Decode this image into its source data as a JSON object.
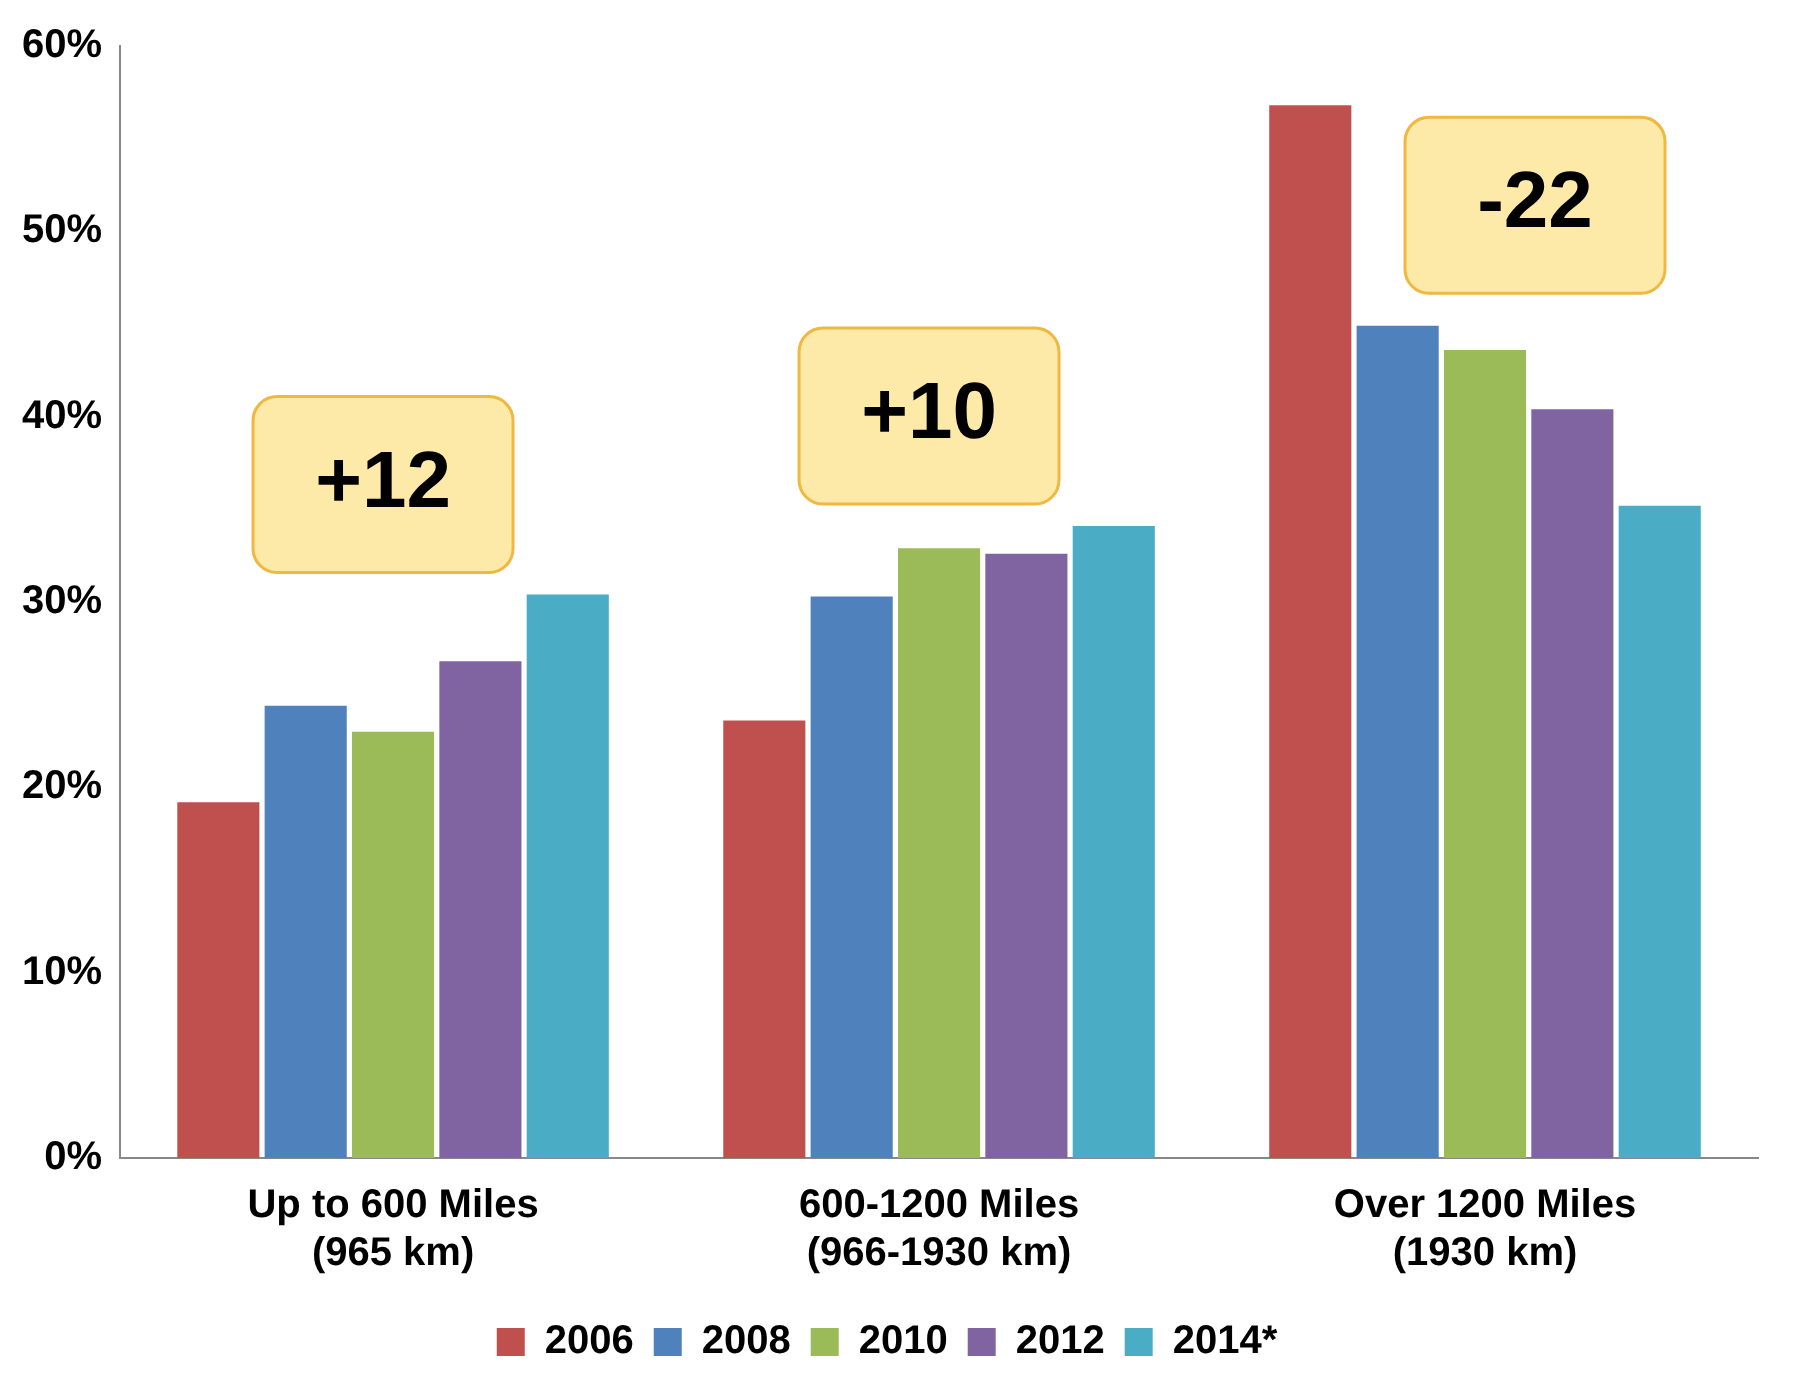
{
  "chart_data": {
    "type": "bar",
    "categories": [
      "Up to 600 Miles\n(965 km)",
      "600-1200 Miles\n(966-1930 km)",
      "Over 1200 Miles\n(1930 km)"
    ],
    "series": [
      {
        "name": "2006",
        "color": "#c0504d",
        "values": [
          19.2,
          23.6,
          56.8
        ]
      },
      {
        "name": "2008",
        "color": "#4f81bd",
        "values": [
          24.4,
          30.3,
          44.9
        ]
      },
      {
        "name": "2010",
        "color": "#9bbb59",
        "values": [
          23.0,
          32.9,
          43.6
        ]
      },
      {
        "name": "2012",
        "color": "#8064a2",
        "values": [
          26.8,
          32.6,
          40.4
        ]
      },
      {
        "name": "2014*",
        "color": "#4bacc6",
        "values": [
          30.4,
          34.1,
          35.2
        ]
      }
    ],
    "ylim": [
      0,
      60
    ],
    "yticks": [
      {
        "value": 0,
        "label": "0%"
      },
      {
        "value": 10,
        "label": "10%"
      },
      {
        "value": 20,
        "label": "20%"
      },
      {
        "value": 30,
        "label": "30%"
      },
      {
        "value": 40,
        "label": "40%"
      },
      {
        "value": 50,
        "label": "50%"
      },
      {
        "value": 60,
        "label": "60%"
      }
    ],
    "grid": false,
    "legend": "bottom",
    "annotations": [
      "+12",
      "+10",
      "-22"
    ]
  }
}
